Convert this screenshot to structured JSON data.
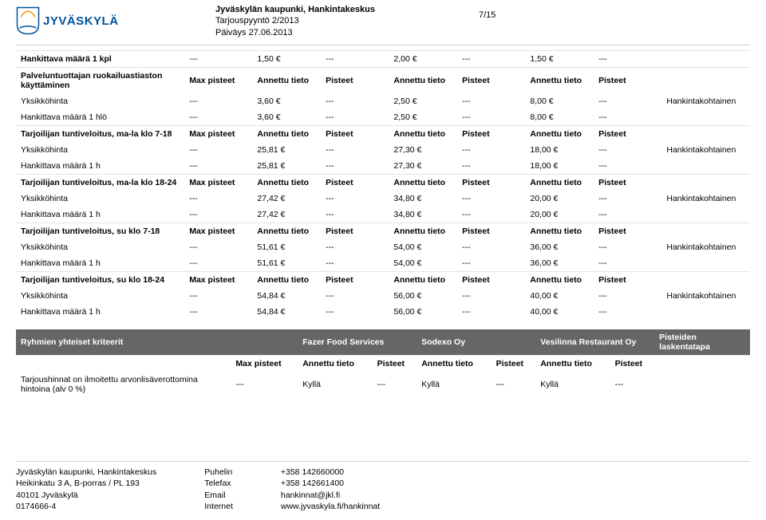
{
  "header": {
    "logo_text": "JYVÄSKYLÄ",
    "line1": "Jyväskylän kaupunki, Hankintakeskus",
    "line2": "Tarjouspyyntö 2/2013",
    "line3": "Päiväys 27.06.2013",
    "page": "7/15"
  },
  "col_headers_a": [
    "Max pisteet",
    "Annettu tieto",
    "Pisteet",
    "Annettu tieto",
    "Pisteet",
    "Annettu tieto",
    "Pisteet"
  ],
  "note_text": "Hankintakohtainen",
  "sections": [
    {
      "title": "Hankittava määrä 1 kpl",
      "title_row": [
        "---",
        "1,50 €",
        "---",
        "2,00 €",
        "---",
        "1,50 €",
        "---"
      ],
      "is_header": false
    },
    {
      "title": "Palveluntuottajan ruokailuastiaston käyttäminen",
      "is_header": true,
      "rows": [
        {
          "label": "Yksikköhinta",
          "vals": [
            "---",
            "3,60 €",
            "---",
            "2,50 €",
            "---",
            "8,00 €",
            "---"
          ],
          "note": true
        },
        {
          "label": "Hankittava määrä 1 hlö",
          "vals": [
            "---",
            "3,60 €",
            "---",
            "2,50 €",
            "---",
            "8,00 €",
            "---"
          ]
        }
      ]
    },
    {
      "title": "Tarjoilijan tuntiveloitus, ma-la klo 7-18",
      "is_header": true,
      "rows": [
        {
          "label": "Yksikköhinta",
          "vals": [
            "---",
            "25,81 €",
            "---",
            "27,30 €",
            "---",
            "18,00 €",
            "---"
          ],
          "note": true
        },
        {
          "label": "Hankittava määrä 1 h",
          "vals": [
            "---",
            "25,81 €",
            "---",
            "27,30 €",
            "---",
            "18,00 €",
            "---"
          ]
        }
      ]
    },
    {
      "title": "Tarjoilijan tuntiveloitus, ma-la klo 18-24",
      "is_header": true,
      "rows": [
        {
          "label": "Yksikköhinta",
          "vals": [
            "---",
            "27,42 €",
            "---",
            "34,80 €",
            "---",
            "20,00 €",
            "---"
          ],
          "note": true
        },
        {
          "label": "Hankittava määrä 1 h",
          "vals": [
            "---",
            "27,42 €",
            "---",
            "34,80 €",
            "---",
            "20,00 €",
            "---"
          ]
        }
      ]
    },
    {
      "title": "Tarjoilijan tuntiveloitus, su klo 7-18",
      "is_header": true,
      "rows": [
        {
          "label": "Yksikköhinta",
          "vals": [
            "---",
            "51,61 €",
            "---",
            "54,00 €",
            "---",
            "36,00 €",
            "---"
          ],
          "note": true
        },
        {
          "label": "Hankittava määrä 1 h",
          "vals": [
            "---",
            "51,61 €",
            "---",
            "54,00 €",
            "---",
            "36,00 €",
            "---"
          ]
        }
      ]
    },
    {
      "title": "Tarjoilijan tuntiveloitus, su klo 18-24",
      "is_header": true,
      "rows": [
        {
          "label": "Yksikköhinta",
          "vals": [
            "---",
            "54,84 €",
            "---",
            "56,00 €",
            "---",
            "40,00 €",
            "---"
          ],
          "note": true
        },
        {
          "label": "Hankittava määrä 1 h",
          "vals": [
            "---",
            "54,84 €",
            "---",
            "56,00 €",
            "---",
            "40,00 €",
            "---"
          ]
        }
      ]
    }
  ],
  "dark": {
    "left_title": "Ryhmien yhteiset kriteerit",
    "cols": [
      "Fazer Food Services",
      "Sodexo Oy",
      "Vesilinna Restaurant Oy",
      "Pisteiden laskentatapa"
    ],
    "subhead": [
      "Max pisteet",
      "Annettu tieto",
      "Pisteet",
      "Annettu tieto",
      "Pisteet",
      "Annettu tieto",
      "Pisteet"
    ],
    "row_label": "Tarjoushinnat on ilmoitettu arvonlisäverottomina hintoina (alv 0 %)",
    "row_vals": [
      "---",
      "Kyllä",
      "---",
      "Kyllä",
      "---",
      "Kyllä",
      "---"
    ]
  },
  "footer": {
    "org1": "Jyväskylän kaupunki, Hankintakeskus",
    "org2": "Heikinkatu 3 A, B-porras / PL 193",
    "org3": "40101 Jyväskylä",
    "org4": "0174666-4",
    "lbl_puh": "Puhelin",
    "lbl_fax": "Telefax",
    "lbl_email": "Email",
    "lbl_net": "Internet",
    "val_puh": "+358 142660000",
    "val_fax": "+358 142661400",
    "val_email": "hankinnat@jkl.fi",
    "val_net": "www.jyvaskyla.fi/hankinnat"
  },
  "colors": {
    "brand": "#00529b",
    "dark_band": "#666666",
    "rule": "#d0d0d0"
  }
}
